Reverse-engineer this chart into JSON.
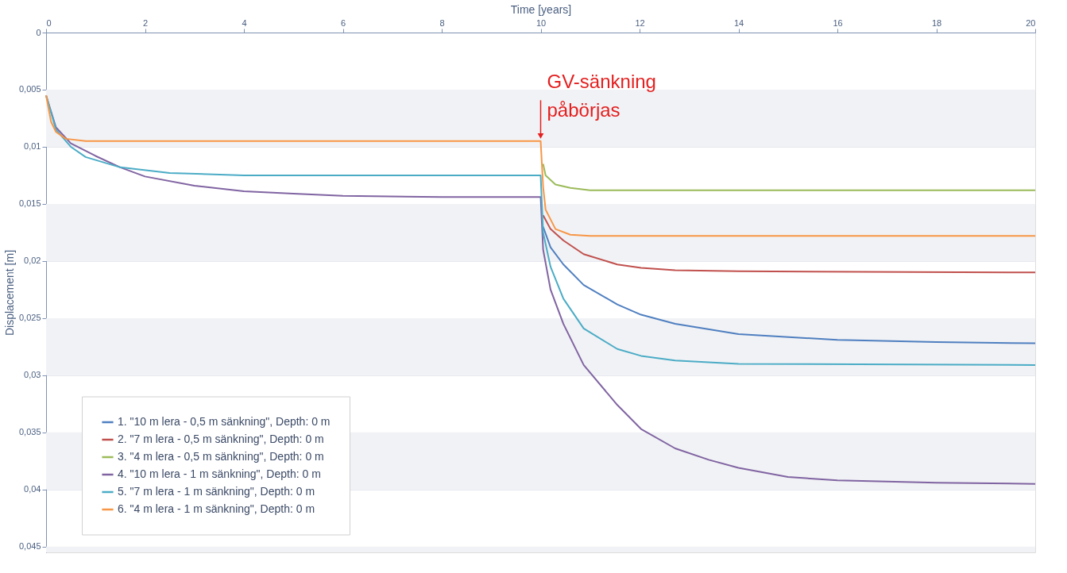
{
  "chart_data": {
    "type": "line",
    "xlabel": "Time [years]",
    "ylabel": "Displacement [m]",
    "xlim": [
      0,
      20
    ],
    "xticks": [
      0,
      2,
      4,
      6,
      8,
      10,
      12,
      14,
      16,
      18,
      20
    ],
    "ylim": [
      0.0455,
      0
    ],
    "yticks": [
      0,
      {
        "value": 0.005,
        "label": "0,005"
      },
      {
        "value": 0.01,
        "label": "0,01"
      },
      {
        "value": 0.015,
        "label": "0,015"
      },
      {
        "value": 0.02,
        "label": "0,02"
      },
      {
        "value": 0.025,
        "label": "0,025"
      },
      {
        "value": 0.03,
        "label": "0,03"
      },
      {
        "value": 0.035,
        "label": "0,035"
      },
      {
        "value": 0.04,
        "label": "0,04"
      },
      {
        "value": 0.045,
        "label": "0,045"
      }
    ],
    "grid": "y",
    "legend": "bottom left",
    "marker": "none",
    "line_style": "solid",
    "annotations": [
      {
        "text": "GV-sänkning\npåbörjas",
        "x": 10,
        "y": 0.0094
      }
    ],
    "series": [
      {
        "name": "1. \"10 m lera - 0,5 m sänkning\", Depth: 0 m",
        "color": "#4f7fc0",
        "x": [
          10.05,
          10.2,
          10.46,
          10.87,
          11.55,
          12.03,
          12.72,
          14,
          16,
          18,
          20
        ],
        "values": [
          0.017,
          0.0188,
          0.0203,
          0.0221,
          0.0238,
          0.0247,
          0.0255,
          0.0264,
          0.0269,
          0.0271,
          0.0272
        ]
      },
      {
        "name": "2. \"7 m lera - 0,5 m sänkning\", Depth: 0 m",
        "color": "#c0504d",
        "x": [
          10.05,
          10.2,
          10.46,
          10.87,
          11.55,
          12.03,
          12.72,
          14,
          20
        ],
        "values": [
          0.016,
          0.0172,
          0.0182,
          0.0194,
          0.0203,
          0.0206,
          0.0208,
          0.0209,
          0.021
        ]
      },
      {
        "name": "3. \"4 m lera - 0,5 m sänkning\", Depth: 0 m",
        "color": "#9bbb59",
        "x": [
          10.05,
          10.1,
          10.3,
          10.6,
          11,
          20
        ],
        "values": [
          0.0115,
          0.0125,
          0.0133,
          0.0136,
          0.0138,
          0.0138
        ]
      },
      {
        "name": "4. \"10 m lera - 1 m sänkning\", Depth: 0 m",
        "color": "#8064a2",
        "x": [
          0,
          0.2,
          0.5,
          1,
          1.5,
          2,
          3,
          4,
          5,
          6,
          8,
          10,
          10.05,
          10.2,
          10.46,
          10.87,
          11.55,
          12.03,
          12.72,
          13.4,
          14,
          15,
          16,
          18,
          20
        ],
        "values": [
          0.0055,
          0.0083,
          0.0097,
          0.0108,
          0.0118,
          0.0126,
          0.0134,
          0.0139,
          0.0141,
          0.0143,
          0.0144,
          0.0144,
          0.019,
          0.0225,
          0.0255,
          0.0291,
          0.0326,
          0.0347,
          0.0364,
          0.0374,
          0.0381,
          0.0389,
          0.0392,
          0.0394,
          0.0395
        ]
      },
      {
        "name": "5. \"7 m lera - 1 m sänkning\", Depth: 0 m",
        "color": "#4bacc6",
        "x": [
          0,
          0.2,
          0.5,
          0.8,
          1.5,
          2.5,
          4,
          10,
          10.05,
          10.2,
          10.46,
          10.87,
          11.55,
          12.03,
          12.72,
          14,
          20
        ],
        "values": [
          0.0055,
          0.0085,
          0.01,
          0.0109,
          0.0118,
          0.0123,
          0.0125,
          0.0125,
          0.0175,
          0.0205,
          0.0233,
          0.0259,
          0.0277,
          0.0283,
          0.0287,
          0.029,
          0.0291
        ]
      },
      {
        "name": "6. \"4 m lera - 1 m sänkning\", Depth: 0 m",
        "color": "#f79646",
        "x": [
          0,
          0.1,
          0.2,
          0.4,
          0.8,
          10,
          10.05,
          10.1,
          10.3,
          10.6,
          11,
          20
        ],
        "values": [
          0.0055,
          0.0078,
          0.0087,
          0.0093,
          0.0095,
          0.0095,
          0.0135,
          0.0155,
          0.0172,
          0.0177,
          0.0178,
          0.0178
        ]
      }
    ]
  }
}
